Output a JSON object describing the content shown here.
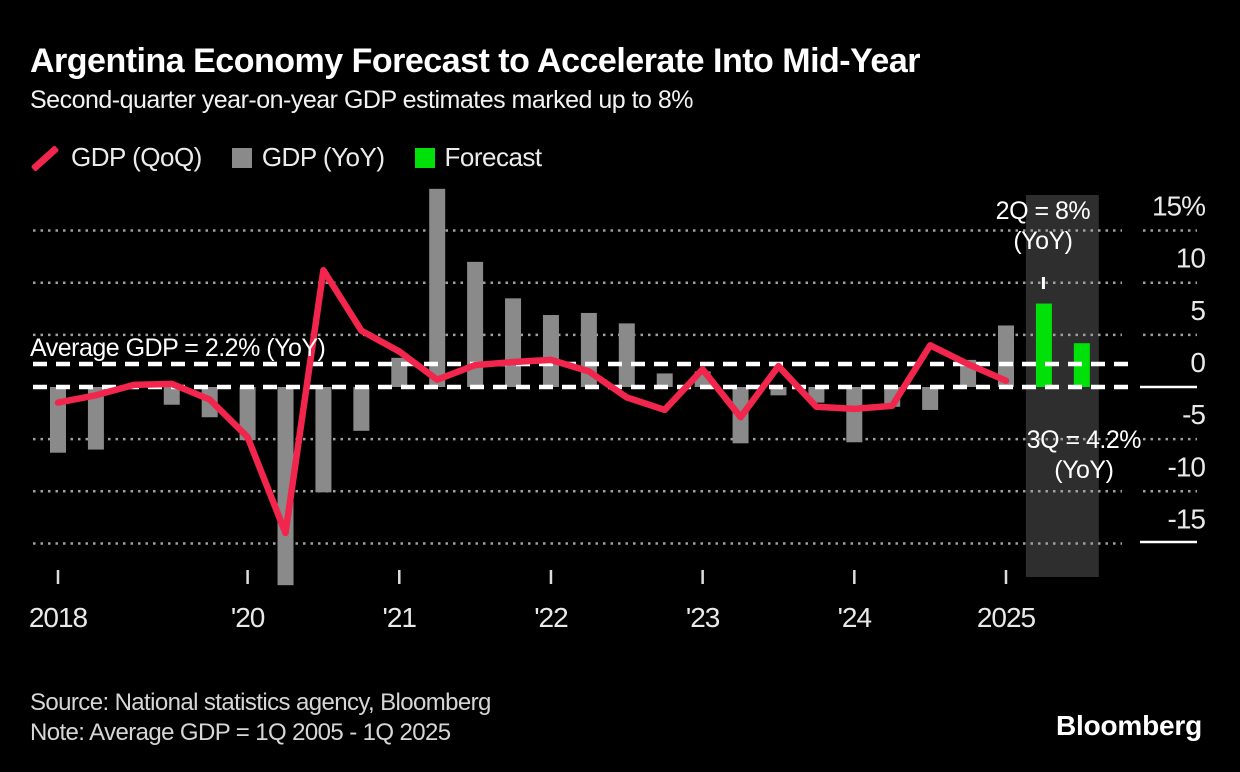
{
  "page": {
    "background": "#000000"
  },
  "header": {
    "title": "Argentina Economy Forecast to Accelerate Into Mid-Year",
    "subtitle": "Second-quarter year-on-year GDP estimates marked up to 8%"
  },
  "legend": [
    {
      "label": "GDP (QoQ)",
      "swatch": "line",
      "color": "#F2254D"
    },
    {
      "label": "GDP (YoY)",
      "swatch": "square",
      "color": "#8A8A8A"
    },
    {
      "label": "Forecast",
      "swatch": "square",
      "color": "#00E10A"
    }
  ],
  "chart_data": {
    "type": "bar",
    "title": "Argentina Economy Forecast to Accelerate Into Mid-Year",
    "subtitle": "Second-quarter year-on-year GDP estimates marked up to 8%",
    "unit": "%",
    "ylim": [
      -19.5,
      19.5
    ],
    "grid": true,
    "legend_position": "top",
    "colors": {
      "qoq_line": "#F2254D",
      "yoy_bar": "#8A8A8A",
      "forecast_bar": "#00E10A",
      "forecast_band": "#2E2E2E",
      "dotted_grid": "#A0A0A0",
      "reference_lines": "#FFFFFF"
    },
    "y_axis": {
      "tick_labels": [
        "15%",
        "10",
        "5",
        "0",
        "-5",
        "-10",
        "-15"
      ],
      "tick_values": [
        15,
        10,
        5,
        0,
        -5,
        -10,
        -15
      ]
    },
    "x_axis": {
      "tick_labels": [
        {
          "label": "2018",
          "index": 0
        },
        {
          "label": "'20",
          "index": 5
        },
        {
          "label": "'21",
          "index": 9
        },
        {
          "label": "'22",
          "index": 13
        },
        {
          "label": "'23",
          "index": 17
        },
        {
          "label": "'24",
          "index": 21
        },
        {
          "label": "2025",
          "index": 25
        }
      ]
    },
    "series": [
      {
        "name": "GDP (QoQ)",
        "type": "line"
      },
      {
        "name": "GDP (YoY)",
        "type": "bar"
      },
      {
        "name": "Forecast",
        "type": "bar"
      }
    ],
    "quarters": [
      {
        "label": "2018 Q4",
        "yoy": -6.3,
        "qoq": -1.5,
        "forecast": false
      },
      {
        "label": "2019 Q1",
        "yoy": -6.0,
        "qoq": -0.8,
        "forecast": false
      },
      {
        "label": "2019 Q2",
        "yoy": 0.0,
        "qoq": 0.2,
        "forecast": false
      },
      {
        "label": "2019 Q3",
        "yoy": -1.7,
        "qoq": 0.3,
        "forecast": false
      },
      {
        "label": "2019 Q4",
        "yoy": -2.9,
        "qoq": -1.2,
        "forecast": false
      },
      {
        "label": "2020 Q1",
        "yoy": -5.1,
        "qoq": -4.8,
        "forecast": false
      },
      {
        "label": "2020 Q2",
        "yoy": -19.0,
        "qoq": -14.0,
        "forecast": false
      },
      {
        "label": "2020 Q3",
        "yoy": -10.1,
        "qoq": 11.2,
        "forecast": false
      },
      {
        "label": "2020 Q4",
        "yoy": -4.2,
        "qoq": 5.4,
        "forecast": false
      },
      {
        "label": "2021 Q1",
        "yoy": 2.8,
        "qoq": 3.4,
        "forecast": false
      },
      {
        "label": "2021 Q2",
        "yoy": 19.0,
        "qoq": 0.7,
        "forecast": false
      },
      {
        "label": "2021 Q3",
        "yoy": 12.0,
        "qoq": 2.1,
        "forecast": false
      },
      {
        "label": "2021 Q4",
        "yoy": 8.5,
        "qoq": 2.4,
        "forecast": false
      },
      {
        "label": "2022 Q1",
        "yoy": 6.9,
        "qoq": 2.6,
        "forecast": false
      },
      {
        "label": "2022 Q2",
        "yoy": 7.1,
        "qoq": 1.5,
        "forecast": false
      },
      {
        "label": "2022 Q3",
        "yoy": 6.1,
        "qoq": -1.0,
        "forecast": false
      },
      {
        "label": "2022 Q4",
        "yoy": 1.3,
        "qoq": -2.2,
        "forecast": false
      },
      {
        "label": "2023 Q1",
        "yoy": 1.5,
        "qoq": 1.7,
        "forecast": false
      },
      {
        "label": "2023 Q2",
        "yoy": -5.4,
        "qoq": -2.9,
        "forecast": false
      },
      {
        "label": "2023 Q3",
        "yoy": -0.8,
        "qoq": 2.0,
        "forecast": false
      },
      {
        "label": "2023 Q4",
        "yoy": -1.5,
        "qoq": -1.9,
        "forecast": false
      },
      {
        "label": "2024 Q1",
        "yoy": -5.3,
        "qoq": -2.1,
        "forecast": false
      },
      {
        "label": "2024 Q2",
        "yoy": -1.9,
        "qoq": -1.8,
        "forecast": false
      },
      {
        "label": "2024 Q3",
        "yoy": -2.2,
        "qoq": 4.0,
        "forecast": false
      },
      {
        "label": "2024 Q4",
        "yoy": 2.6,
        "qoq": 2.2,
        "forecast": false
      },
      {
        "label": "2025 Q1",
        "yoy": 5.9,
        "qoq": 0.6,
        "forecast": false
      },
      {
        "label": "2025 Q2",
        "yoy": 8.0,
        "qoq": null,
        "forecast": true
      },
      {
        "label": "2025 Q3",
        "yoy": 4.2,
        "qoq": null,
        "forecast": true
      }
    ],
    "average_line": {
      "label": "Average GDP = 2.2% (YoY)",
      "value": 2.2
    },
    "zero_line": {
      "value": 0
    },
    "forecast_band": {
      "from": "2025 Q2",
      "to": "2025 Q3"
    },
    "annotations": [
      {
        "lines": [
          "2Q = 8%",
          "(YoY)"
        ],
        "target": "2025 Q2"
      },
      {
        "lines": [
          "3Q = 4.2%",
          "(YoY)"
        ],
        "target": "2025 Q3"
      }
    ]
  },
  "footer": {
    "source": "Source: National statistics agency, Bloomberg",
    "note": "Note: Average GDP = 1Q 2005 - 1Q 2025",
    "logo": "Bloomberg"
  }
}
